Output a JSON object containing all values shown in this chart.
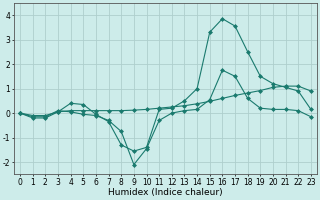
{
  "xlabel": "Humidex (Indice chaleur)",
  "ylabel": "",
  "x_values": [
    0,
    1,
    2,
    3,
    4,
    5,
    6,
    7,
    8,
    9,
    10,
    11,
    12,
    13,
    14,
    15,
    16,
    17,
    18,
    19,
    20,
    21,
    22,
    23
  ],
  "line1": [
    0.0,
    -0.2,
    -0.2,
    0.05,
    0.4,
    0.35,
    -0.05,
    -0.35,
    -1.3,
    -1.55,
    -1.4,
    0.15,
    0.2,
    0.5,
    1.0,
    3.3,
    3.85,
    3.55,
    2.5,
    1.5,
    1.2,
    1.05,
    0.9,
    0.15
  ],
  "line2": [
    0.0,
    -0.15,
    -0.15,
    0.1,
    0.05,
    -0.05,
    -0.1,
    -0.3,
    -0.75,
    -2.1,
    -1.45,
    -0.3,
    0.0,
    0.1,
    0.15,
    0.55,
    1.75,
    1.5,
    0.6,
    0.2,
    0.15,
    0.15,
    0.1,
    -0.15
  ],
  "line3": [
    0.0,
    -0.1,
    -0.1,
    0.05,
    0.1,
    0.1,
    0.1,
    0.1,
    0.1,
    0.12,
    0.15,
    0.2,
    0.25,
    0.3,
    0.38,
    0.48,
    0.6,
    0.72,
    0.82,
    0.92,
    1.05,
    1.1,
    1.1,
    0.9
  ],
  "line_color": "#1a7a6e",
  "bg_color": "#cdecea",
  "grid_color": "#aecfcd",
  "ylim": [
    -2.5,
    4.5
  ],
  "xlim": [
    -0.5,
    23.5
  ],
  "yticks": [
    -2,
    -1,
    0,
    1,
    2,
    3,
    4
  ],
  "xticks": [
    0,
    1,
    2,
    3,
    4,
    5,
    6,
    7,
    8,
    9,
    10,
    11,
    12,
    13,
    14,
    15,
    16,
    17,
    18,
    19,
    20,
    21,
    22,
    23
  ],
  "marker": "D",
  "markersize": 2.0,
  "linewidth": 0.8,
  "tick_fontsize": 5.5,
  "label_fontsize": 6.5
}
